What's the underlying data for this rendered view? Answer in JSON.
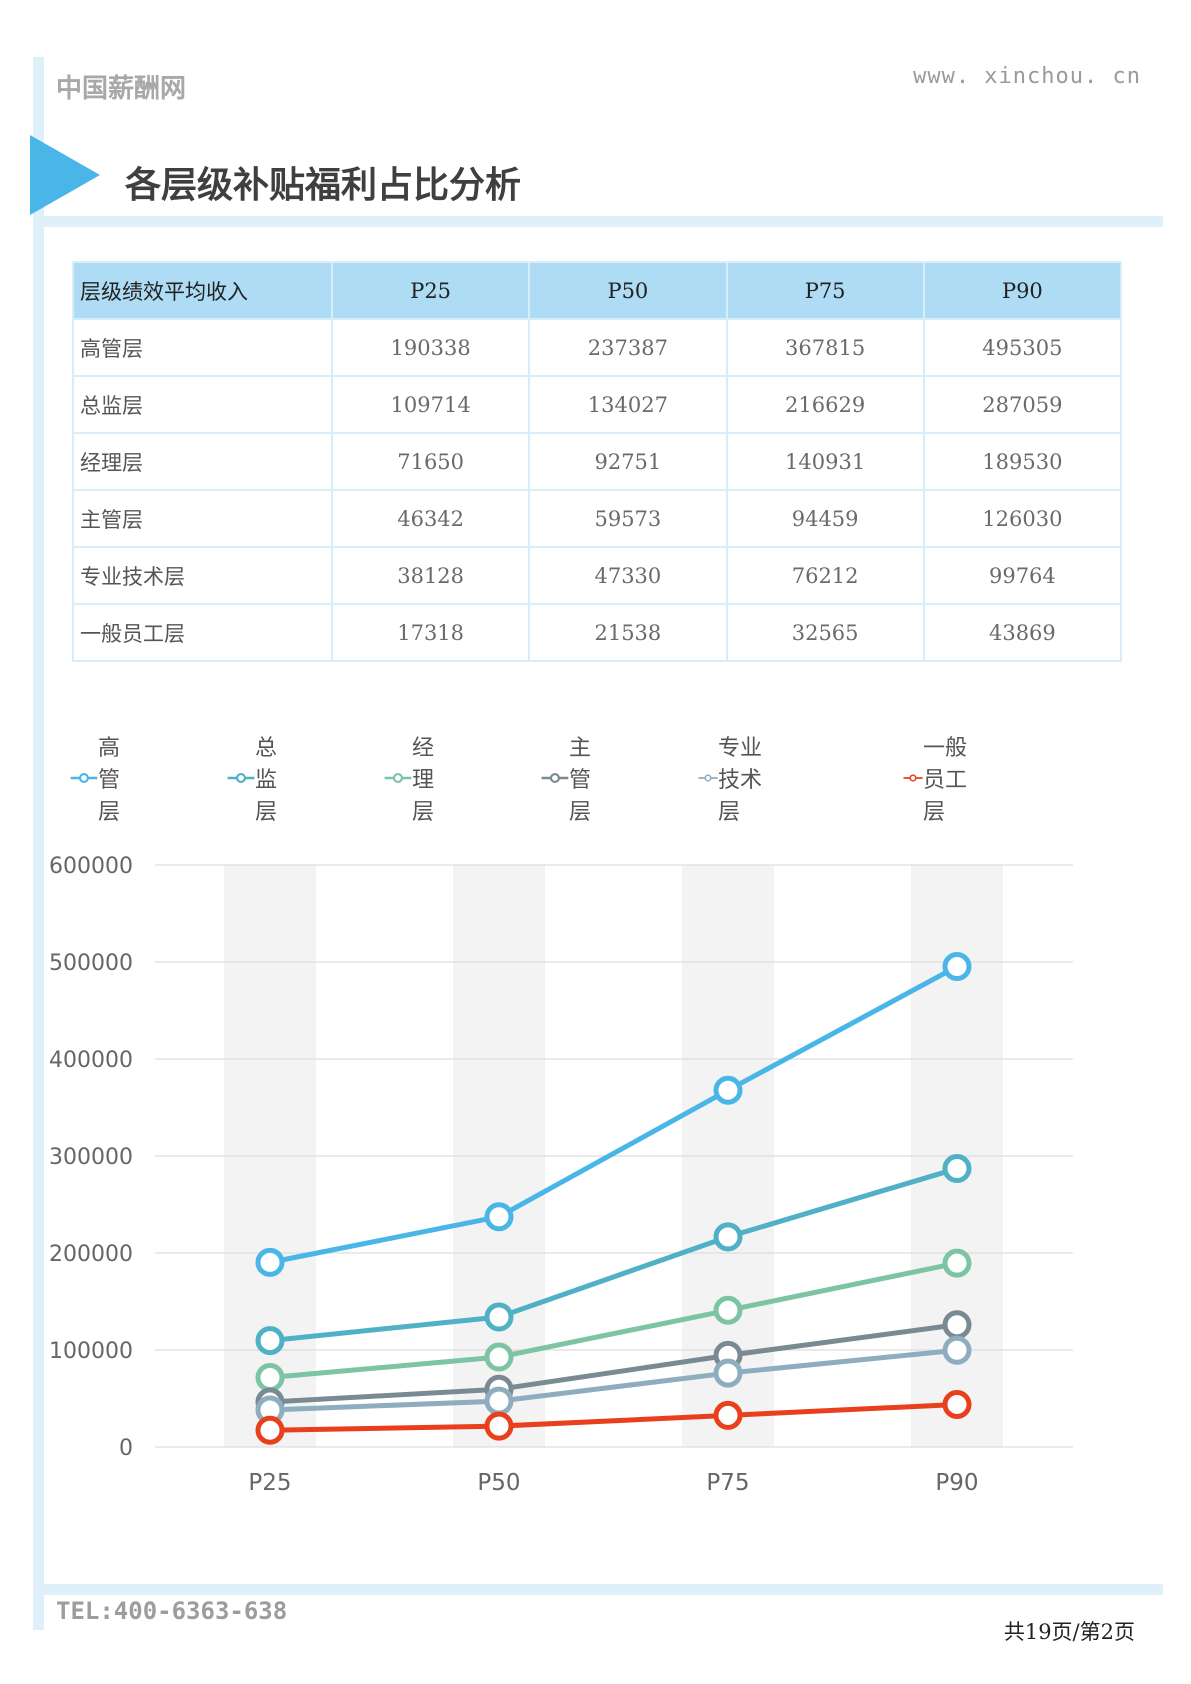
{
  "header": {
    "brand": "中国薪酬网",
    "url": "www. xinchou. cn",
    "title": "各层级补贴福利占比分析"
  },
  "table": {
    "columns": [
      "层级绩效平均收入",
      "P25",
      "P50",
      "P75",
      "P90"
    ],
    "rows": [
      {
        "label": "高管层",
        "values": [
          "190338",
          "237387",
          "367815",
          "495305"
        ]
      },
      {
        "label": "总监层",
        "values": [
          "109714",
          "134027",
          "216629",
          "287059"
        ]
      },
      {
        "label": "经理层",
        "values": [
          "71650",
          "92751",
          "140931",
          "189530"
        ]
      },
      {
        "label": "主管层",
        "values": [
          "46342",
          "59573",
          "94459",
          "126030"
        ]
      },
      {
        "label": "专业技术层",
        "values": [
          "38128",
          "47330",
          "76212",
          "99764"
        ]
      },
      {
        "label": "一般员工层",
        "values": [
          "17318",
          "21538",
          "32565",
          "43869"
        ]
      }
    ]
  },
  "chart_data": {
    "type": "line",
    "categories": [
      "P25",
      "P50",
      "P75",
      "P90"
    ],
    "series": [
      {
        "name": "高管层",
        "values": [
          190338,
          237387,
          367815,
          495305
        ],
        "color": "#4ab6e8"
      },
      {
        "name": "总监层",
        "values": [
          109714,
          134027,
          216629,
          287059
        ],
        "color": "#4fb0c6"
      },
      {
        "name": "经理层",
        "values": [
          71650,
          92751,
          140931,
          189530
        ],
        "color": "#7cc4a4"
      },
      {
        "name": "主管层",
        "values": [
          46342,
          59573,
          94459,
          126030
        ],
        "color": "#7a8a93"
      },
      {
        "name": "专业技术层",
        "values": [
          38128,
          47330,
          76212,
          99764
        ],
        "color": "#8eadbe"
      },
      {
        "name": "一般员工层",
        "values": [
          17318,
          21538,
          32565,
          43869
        ],
        "color": "#e8401c"
      }
    ],
    "ylim": [
      0,
      600000
    ],
    "yticks": [
      "0",
      "100000",
      "200000",
      "300000",
      "400000",
      "500000",
      "600000"
    ],
    "grid": true,
    "legend_position": "top"
  },
  "footer": {
    "tel": "TEL:400-6363-638",
    "page": "共19页/第2页"
  }
}
